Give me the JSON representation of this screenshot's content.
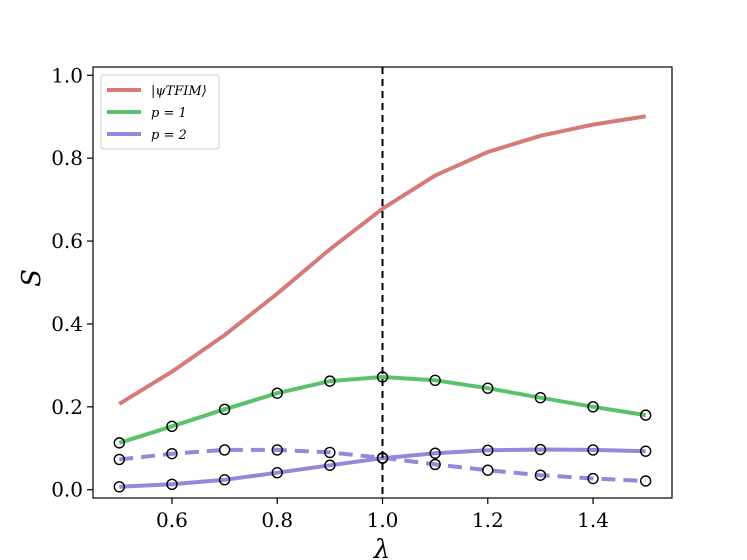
{
  "chart_data": {
    "type": "line",
    "title": "",
    "xlabel": "λ",
    "ylabel": "S",
    "xlim": [
      0.45,
      1.55
    ],
    "ylim": [
      -0.02,
      1.02
    ],
    "xticks": [
      0.6,
      0.8,
      1.0,
      1.2,
      1.4
    ],
    "xtick_labels": [
      "0.6",
      "0.8",
      "1.0",
      "1.2",
      "1.4"
    ],
    "yticks": [
      0.0,
      0.2,
      0.4,
      0.6,
      0.8,
      1.0
    ],
    "ytick_labels": [
      "0.0",
      "0.2",
      "0.4",
      "0.6",
      "0.8",
      "1.0"
    ],
    "grid": false,
    "legend_position": "top-left",
    "vline": {
      "x": 1.0,
      "style": "dashed",
      "color": "#000000"
    },
    "x": [
      0.5,
      0.6,
      0.7,
      0.8,
      0.9,
      1.0,
      1.1,
      1.2,
      1.3,
      1.4,
      1.5
    ],
    "series": [
      {
        "name": "|ψTFIM⟩",
        "color": "#d67a78",
        "style": "solid",
        "markers": false,
        "values": [
          0.207,
          0.285,
          0.373,
          0.473,
          0.58,
          0.678,
          0.758,
          0.815,
          0.854,
          0.881,
          0.901
        ]
      },
      {
        "name": "p = 1",
        "color": "#5ac16c",
        "style": "solid",
        "markers": true,
        "values": [
          0.113,
          0.153,
          0.194,
          0.233,
          0.262,
          0.272,
          0.264,
          0.245,
          0.222,
          0.2,
          0.18
        ]
      },
      {
        "name": "p = 2",
        "color": "#9587d9",
        "style": "solid",
        "markers": true,
        "values": [
          0.007,
          0.013,
          0.024,
          0.041,
          0.059,
          0.076,
          0.088,
          0.095,
          0.097,
          0.096,
          0.093
        ]
      },
      {
        "color": "#9587d9",
        "style": "dashed",
        "markers": true,
        "values": [
          0.073,
          0.087,
          0.096,
          0.096,
          0.09,
          0.077,
          0.061,
          0.047,
          0.035,
          0.027,
          0.021
        ]
      }
    ]
  }
}
